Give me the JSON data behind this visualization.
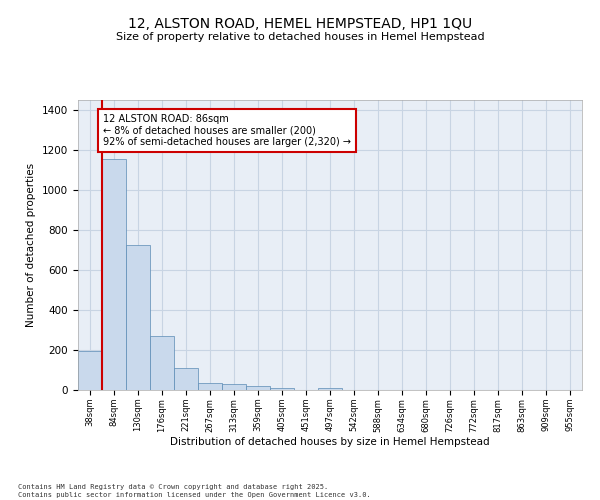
{
  "title_line1": "12, ALSTON ROAD, HEMEL HEMPSTEAD, HP1 1QU",
  "title_line2": "Size of property relative to detached houses in Hemel Hempstead",
  "xlabel": "Distribution of detached houses by size in Hemel Hempstead",
  "ylabel": "Number of detached properties",
  "bar_labels": [
    "38sqm",
    "84sqm",
    "130sqm",
    "176sqm",
    "221sqm",
    "267sqm",
    "313sqm",
    "359sqm",
    "405sqm",
    "451sqm",
    "497sqm",
    "542sqm",
    "588sqm",
    "634sqm",
    "680sqm",
    "726sqm",
    "772sqm",
    "817sqm",
    "863sqm",
    "909sqm",
    "955sqm"
  ],
  "bar_heights": [
    195,
    1155,
    725,
    270,
    108,
    35,
    28,
    20,
    10,
    0,
    8,
    0,
    0,
    0,
    0,
    0,
    0,
    0,
    0,
    0,
    0
  ],
  "bar_color": "#c9d9ec",
  "bar_edge_color": "#5a8ab5",
  "annotation_title": "12 ALSTON ROAD: 86sqm",
  "annotation_line1": "← 8% of detached houses are smaller (200)",
  "annotation_line2": "92% of semi-detached houses are larger (2,320) →",
  "annotation_box_color": "#ffffff",
  "annotation_box_edge": "#cc0000",
  "vline_color": "#cc0000",
  "ylim": [
    0,
    1450
  ],
  "yticks": [
    0,
    200,
    400,
    600,
    800,
    1000,
    1200,
    1400
  ],
  "grid_color": "#c8d4e3",
  "bg_color": "#e8eef6",
  "footer_line1": "Contains HM Land Registry data © Crown copyright and database right 2025.",
  "footer_line2": "Contains public sector information licensed under the Open Government Licence v3.0."
}
